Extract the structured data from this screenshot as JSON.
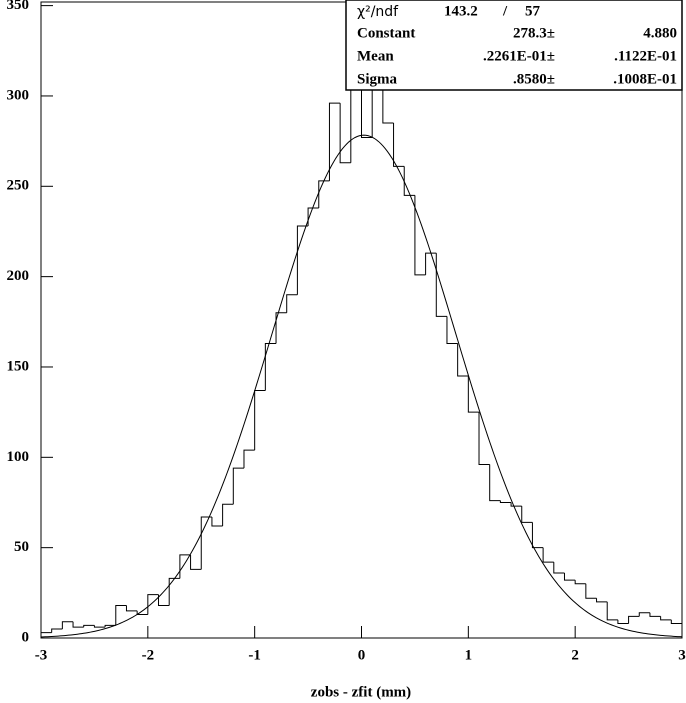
{
  "chart_data": {
    "type": "histogram",
    "x_label": "zobs - zfit (mm)",
    "bins": [
      -3,
      -2.9,
      -2.8,
      -2.7,
      -2.6,
      -2.5,
      -2.4,
      -2.3,
      -2.2,
      -2.1,
      -2,
      -1.9,
      -1.8,
      -1.7,
      -1.6,
      -1.5,
      -1.4,
      -1.3,
      -1.2,
      -1.1,
      -1,
      -0.9,
      -0.8,
      -0.7,
      -0.6,
      -0.5,
      -0.4,
      -0.3,
      -0.2,
      -0.1,
      0,
      0.1,
      0.2,
      0.3,
      0.4,
      0.5,
      0.6,
      0.7,
      0.8,
      0.9,
      1,
      1.1,
      1.2,
      1.3,
      1.4,
      1.5,
      1.6,
      1.7,
      1.8,
      1.9,
      2,
      2.1,
      2.2,
      2.3,
      2.4,
      2.5,
      2.6,
      2.7,
      2.8,
      2.9,
      3
    ],
    "values": [
      3,
      5,
      9,
      6,
      7,
      6,
      7,
      18,
      15,
      13,
      24,
      18,
      33,
      46,
      38,
      67,
      62,
      74,
      94,
      104,
      137,
      163,
      180,
      190,
      228,
      238,
      253,
      296,
      263,
      313,
      277,
      318,
      285,
      261,
      245,
      201,
      213,
      178,
      163,
      145,
      125,
      96,
      76,
      75,
      73,
      64,
      50,
      42,
      36,
      32,
      30,
      22,
      20,
      10,
      8,
      12,
      14,
      12,
      10,
      8
    ],
    "color": "#000000",
    "xlim": [
      -3,
      3
    ],
    "ylim": [
      0,
      352
    ],
    "xticks": [
      -3,
      -2,
      -1,
      0,
      1,
      2,
      3
    ],
    "yticks": [
      0,
      50,
      100,
      150,
      200,
      250,
      300,
      350
    ],
    "stats": {
      "chi2_label": "χ²/ndf",
      "chi2": 143.2,
      "slash": "/",
      "ndf": 57,
      "rows": [
        {
          "name": "Constant",
          "value": 278.3,
          "value_label": "278.3±",
          "error": 4.88,
          "error_label": "4.880"
        },
        {
          "name": "Mean",
          "value": 0.02261,
          "value_label": ".2261E-01±",
          "error": 0.01122,
          "error_label": ".1122E-01"
        },
        {
          "name": "Sigma",
          "value": 0.858,
          "value_label": ".8580±",
          "error": 0.01008,
          "error_label": ".1008E-01"
        }
      ]
    }
  }
}
